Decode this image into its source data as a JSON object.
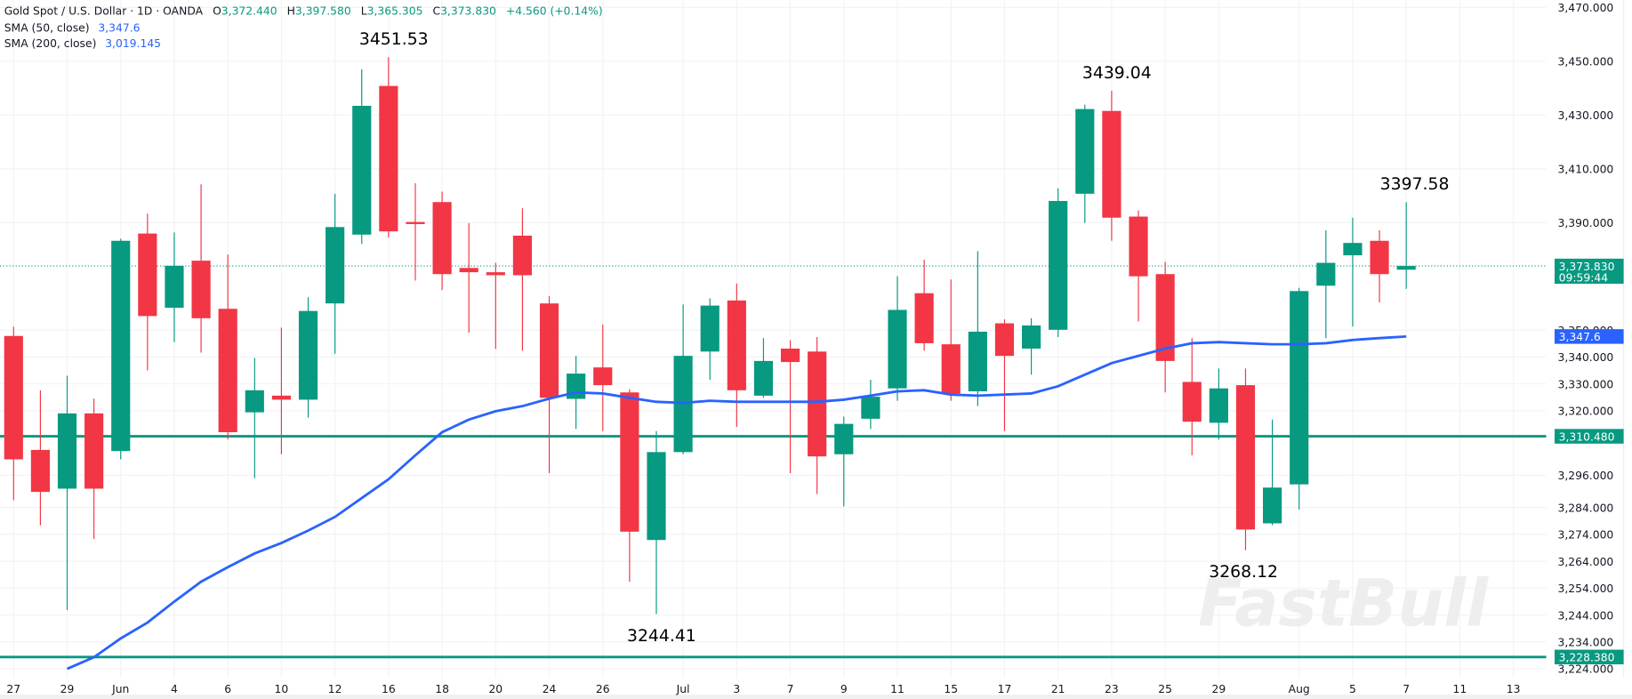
{
  "legend": {
    "symbol": "Gold Spot / U.S. Dollar · 1D · OANDA",
    "open": "3,372.440",
    "high": "3,397.580",
    "low": "3,365.305",
    "close": "3,373.830",
    "change": "+4.560 (+0.14%)",
    "sma50_label": "SMA (50, close)",
    "sma50_value": "3,347.6",
    "sma200_label": "SMA (200, close)",
    "sma200_value": "3,019.145"
  },
  "price_tags": {
    "last_price": "3,373.830",
    "countdown": "09:59:44",
    "sma50": "3,347.6",
    "level_1": "3,310.480",
    "level_2": "3,228.380"
  },
  "annotations": [
    "3451.53",
    "3439.04",
    "3397.58",
    "3268.12",
    "3244.41"
  ],
  "watermark": "FastBull",
  "colors": {
    "up": "#089981",
    "down": "#f23645",
    "sma50": "#2962ff",
    "level": "#089981"
  },
  "chart_data": {
    "type": "candlestick",
    "title": "Gold Spot / U.S. Dollar · 1D · OANDA",
    "ylim": [
      3218,
      3472
    ],
    "y_ticks": [
      "3,470.000",
      "3,450.000",
      "3,430.000",
      "3,410.000",
      "3,390.000",
      "3,350.000",
      "3,340.000",
      "3,330.000",
      "3,320.000",
      "3,296.000",
      "3,284.000",
      "3,274.000",
      "3,264.000",
      "3,254.000",
      "3,244.000",
      "3,234.000",
      "3,224.000"
    ],
    "x_ticks": [
      {
        "label": "27",
        "index": 0
      },
      {
        "label": "29",
        "index": 2
      },
      {
        "label": "Jun",
        "index": 4
      },
      {
        "label": "4",
        "index": 6
      },
      {
        "label": "6",
        "index": 8
      },
      {
        "label": "10",
        "index": 10
      },
      {
        "label": "12",
        "index": 12
      },
      {
        "label": "16",
        "index": 14
      },
      {
        "label": "18",
        "index": 16
      },
      {
        "label": "20",
        "index": 18
      },
      {
        "label": "24",
        "index": 20
      },
      {
        "label": "26",
        "index": 22
      },
      {
        "label": "Jul",
        "index": 25
      },
      {
        "label": "3",
        "index": 27
      },
      {
        "label": "7",
        "index": 29
      },
      {
        "label": "9",
        "index": 31
      },
      {
        "label": "11",
        "index": 33
      },
      {
        "label": "15",
        "index": 35
      },
      {
        "label": "17",
        "index": 37
      },
      {
        "label": "21",
        "index": 39
      },
      {
        "label": "23",
        "index": 41
      },
      {
        "label": "25",
        "index": 43
      },
      {
        "label": "29",
        "index": 45
      },
      {
        "label": "Aug",
        "index": 48
      },
      {
        "label": "5",
        "index": 50
      },
      {
        "label": "7",
        "index": 52
      },
      {
        "label": "11",
        "index": 54
      },
      {
        "label": "13",
        "index": 56
      }
    ],
    "candles": [
      [
        3347.8,
        3351.3,
        3286.7,
        3301.9
      ],
      [
        3305.4,
        3327.6,
        3277.4,
        3289.8
      ],
      [
        3291.0,
        3333.0,
        3245.9,
        3319.0
      ],
      [
        3319.0,
        3324.5,
        3272.3,
        3291.0
      ],
      [
        3305.0,
        3384.0,
        3301.9,
        3383.2
      ],
      [
        3385.9,
        3393.3,
        3335.0,
        3355.2
      ],
      [
        3358.3,
        3386.3,
        3345.5,
        3373.9
      ],
      [
        3375.8,
        3404.2,
        3341.6,
        3354.4
      ],
      [
        3357.9,
        3378.1,
        3309.3,
        3312.0
      ],
      [
        3319.4,
        3339.6,
        3294.9,
        3327.6
      ],
      [
        3325.6,
        3350.9,
        3303.8,
        3324.1
      ],
      [
        3324.1,
        3362.2,
        3317.4,
        3357.1
      ],
      [
        3359.9,
        3400.7,
        3341.2,
        3388.3
      ],
      [
        3385.5,
        3447.0,
        3382.0,
        3433.4
      ],
      [
        3440.8,
        3451.53,
        3384.4,
        3386.7
      ],
      [
        3390.2,
        3404.6,
        3368.4,
        3390.0
      ],
      [
        3397.6,
        3401.5,
        3364.9,
        3370.8
      ],
      [
        3373.1,
        3389.8,
        3349.0,
        3371.5
      ],
      [
        3371.5,
        3375.0,
        3343.0,
        3370.4
      ],
      [
        3385.1,
        3395.3,
        3342.3,
        3370.4
      ],
      [
        3359.9,
        3362.6,
        3296.8,
        3324.8
      ],
      [
        3324.4,
        3340.4,
        3313.2,
        3333.8
      ],
      [
        3336.1,
        3352.0,
        3312.4,
        3329.5
      ],
      [
        3326.8,
        3328.0,
        3256.4,
        3275.0
      ],
      [
        3271.9,
        3312.4,
        3244.41,
        3304.6
      ],
      [
        3304.6,
        3359.5,
        3303.8,
        3340.4
      ],
      [
        3342.0,
        3361.8,
        3331.5,
        3359.1
      ],
      [
        3361.0,
        3367.3,
        3314.0,
        3327.6
      ],
      [
        3325.6,
        3347.0,
        3324.8,
        3338.5
      ],
      [
        3343.1,
        3346.2,
        3296.8,
        3338.1
      ],
      [
        3342.0,
        3347.4,
        3289.0,
        3303.0
      ],
      [
        3303.8,
        3317.8,
        3284.4,
        3315.1
      ],
      [
        3317.0,
        3331.5,
        3313.2,
        3325.2
      ],
      [
        3328.3,
        3370.0,
        3323.7,
        3357.5
      ],
      [
        3363.7,
        3376.2,
        3342.3,
        3345.1
      ],
      [
        3344.7,
        3368.8,
        3323.7,
        3326.4
      ],
      [
        3327.2,
        3379.3,
        3321.7,
        3349.4
      ],
      [
        3352.5,
        3354.0,
        3312.4,
        3340.4
      ],
      [
        3343.1,
        3354.4,
        3333.4,
        3351.7
      ],
      [
        3350.1,
        3402.7,
        3347.4,
        3398.0
      ],
      [
        3400.7,
        3433.8,
        3389.8,
        3432.2
      ],
      [
        3431.5,
        3439.04,
        3383.2,
        3391.8
      ],
      [
        3392.2,
        3394.5,
        3353.2,
        3370.0
      ],
      [
        3370.8,
        3375.4,
        3326.8,
        3338.5
      ],
      [
        3330.7,
        3347.0,
        3303.4,
        3315.9
      ],
      [
        3315.5,
        3335.7,
        3309.3,
        3328.3
      ],
      [
        3329.5,
        3335.7,
        3268.12,
        3275.8
      ],
      [
        3278.1,
        3316.7,
        3277.4,
        3291.4
      ],
      [
        3292.6,
        3365.7,
        3283.2,
        3364.5
      ],
      [
        3366.5,
        3387.1,
        3347.0,
        3375.0
      ],
      [
        3377.8,
        3391.8,
        3351.3,
        3382.4
      ],
      [
        3383.2,
        3387.1,
        3360.3,
        3370.8
      ],
      [
        3372.44,
        3397.58,
        3365.305,
        3373.83
      ]
    ],
    "candle_fields": [
      "open",
      "high",
      "low",
      "close"
    ],
    "series": [
      {
        "name": "SMA (50, close)",
        "start_index": 2,
        "values": [
          3224.0,
          3228.3,
          3235.3,
          3241.2,
          3249.0,
          3256.4,
          3261.8,
          3266.9,
          3270.8,
          3275.4,
          3280.5,
          3287.5,
          3294.5,
          3303.4,
          3312.0,
          3316.7,
          3319.8,
          3321.7,
          3324.5,
          3326.8,
          3326.4,
          3324.8,
          3323.3,
          3322.9,
          3323.7,
          3323.3,
          3323.3,
          3323.3,
          3323.3,
          3324.1,
          3325.6,
          3327.2,
          3327.6,
          3326.0,
          3325.6,
          3326.0,
          3326.4,
          3329.1,
          3333.4,
          3337.7,
          3340.4,
          3343.1,
          3345.1,
          3345.5,
          3345.1,
          3344.7,
          3344.7,
          3345.1,
          3346.3,
          3347.0,
          3347.6
        ]
      }
    ],
    "horizontal_levels": [
      3310.48,
      3228.38
    ],
    "last_price": 3373.83
  }
}
